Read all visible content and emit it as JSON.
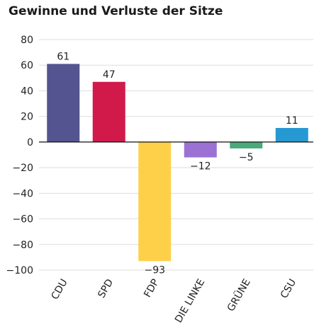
{
  "chart_data": {
    "type": "bar",
    "title": "Gewinne und Verluste der Sitze",
    "xlabel": "",
    "ylabel": "",
    "categories": [
      "CDU",
      "SPD",
      "FDP",
      "DIE LINKE",
      "GRÜNE",
      "CSU"
    ],
    "values": [
      61,
      47,
      -93,
      -12,
      -5,
      11
    ],
    "value_labels": [
      "61",
      "47",
      "−93",
      "−12",
      "−5",
      "11"
    ],
    "colors": [
      "#545490",
      "#d11a4a",
      "#fed04a",
      "#9c71d4",
      "#4aa978",
      "#2699d3"
    ],
    "ylim": [
      -100,
      80
    ],
    "yticks": [
      80,
      60,
      40,
      20,
      0,
      -20,
      -40,
      -60,
      -80,
      -100
    ],
    "ytick_labels": [
      "80",
      "60",
      "40",
      "20",
      "0",
      "−20",
      "−40",
      "−60",
      "−80",
      "−100"
    ],
    "grid": true,
    "legend": "none"
  }
}
